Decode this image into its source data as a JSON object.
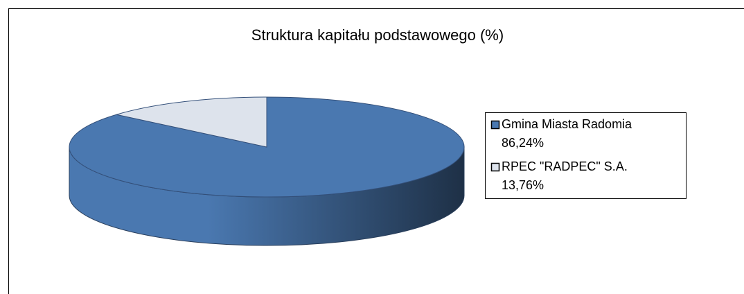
{
  "chart_data": {
    "type": "pie",
    "title": "Struktura kapitału podstawowego (%)",
    "categories": [
      "Gmina Miasta Radomia",
      "RPEC \"RADPEC\" S.A."
    ],
    "values": [
      86.24,
      13.76
    ],
    "value_labels": [
      "86,24%",
      "13,76%"
    ],
    "colors": [
      "#4a78b0",
      "#dde3ec"
    ],
    "legend": "right"
  }
}
